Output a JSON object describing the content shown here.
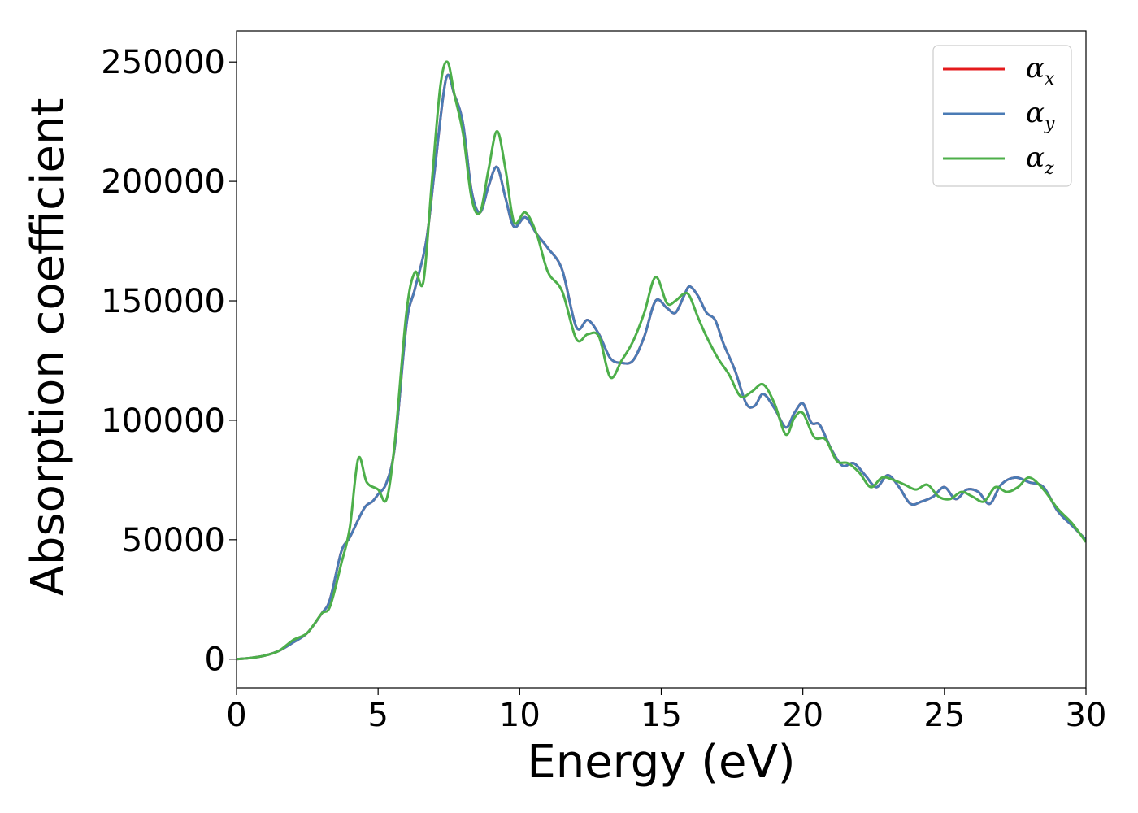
{
  "chart_data": {
    "type": "line",
    "xlabel": "Energy (eV)",
    "ylabel": "Absorption coefficient",
    "xlim": [
      0,
      30
    ],
    "ylim": [
      -12000,
      263000
    ],
    "xticks": [
      0,
      5,
      10,
      15,
      20,
      25,
      30
    ],
    "yticks": [
      0,
      50000,
      100000,
      150000,
      200000,
      250000
    ],
    "grid": false,
    "legend_position": "top-right",
    "series": [
      {
        "name": "α_x",
        "legend_symbol": "α",
        "legend_subscript": "x",
        "color": "#e41a1c",
        "x": [
          0,
          0.5,
          1,
          1.5,
          2,
          2.5,
          3,
          3.3,
          3.7,
          4,
          4.5,
          4.8,
          5.0,
          5.3,
          5.6,
          6.0,
          6.3,
          6.7,
          7.0,
          7.4,
          7.7,
          8.0,
          8.3,
          8.6,
          8.9,
          9.2,
          9.5,
          9.8,
          10.2,
          10.6,
          11.0,
          11.5,
          12.0,
          12.4,
          12.8,
          13.2,
          13.6,
          14.0,
          14.4,
          14.8,
          15.2,
          15.5,
          15.8,
          16.0,
          16.3,
          16.6,
          16.9,
          17.2,
          17.6,
          18.0,
          18.3,
          18.6,
          19.0,
          19.4,
          19.7,
          20.0,
          20.3,
          20.6,
          21.0,
          21.4,
          21.8,
          22.2,
          22.6,
          23.0,
          23.4,
          23.8,
          24.2,
          24.6,
          25.0,
          25.4,
          25.8,
          26.2,
          26.6,
          27.0,
          27.5,
          28.0,
          28.5,
          29.0,
          29.5,
          30.0
        ],
        "y": [
          0,
          500,
          1500,
          3500,
          7000,
          11000,
          19000,
          25000,
          45000,
          51000,
          63000,
          66000,
          69000,
          74000,
          90000,
          140000,
          155000,
          175000,
          205000,
          243000,
          236000,
          224000,
          196000,
          187000,
          198000,
          206000,
          193000,
          181000,
          185000,
          178000,
          172000,
          163000,
          139000,
          142000,
          136000,
          126000,
          124000,
          125000,
          135000,
          150000,
          147000,
          145000,
          152000,
          156000,
          152000,
          145000,
          142000,
          132000,
          121000,
          107000,
          106000,
          111000,
          105000,
          97000,
          103000,
          107000,
          99000,
          98000,
          88000,
          81000,
          82000,
          77000,
          72000,
          77000,
          72000,
          65000,
          66000,
          68000,
          72000,
          67000,
          71000,
          70000,
          65000,
          73000,
          76000,
          74000,
          72000,
          62000,
          56000,
          50000
        ]
      },
      {
        "name": "α_y",
        "legend_symbol": "α",
        "legend_subscript": "y",
        "color": "#4a7bb5",
        "x": [
          0,
          0.5,
          1,
          1.5,
          2,
          2.5,
          3,
          3.3,
          3.7,
          4,
          4.5,
          4.8,
          5.0,
          5.3,
          5.6,
          6.0,
          6.3,
          6.7,
          7.0,
          7.4,
          7.7,
          8.0,
          8.3,
          8.6,
          8.9,
          9.2,
          9.5,
          9.8,
          10.2,
          10.6,
          11.0,
          11.5,
          12.0,
          12.4,
          12.8,
          13.2,
          13.6,
          14.0,
          14.4,
          14.8,
          15.2,
          15.5,
          15.8,
          16.0,
          16.3,
          16.6,
          16.9,
          17.2,
          17.6,
          18.0,
          18.3,
          18.6,
          19.0,
          19.4,
          19.7,
          20.0,
          20.3,
          20.6,
          21.0,
          21.4,
          21.8,
          22.2,
          22.6,
          23.0,
          23.4,
          23.8,
          24.2,
          24.6,
          25.0,
          25.4,
          25.8,
          26.2,
          26.6,
          27.0,
          27.5,
          28.0,
          28.5,
          29.0,
          29.5,
          30.0
        ],
        "y": [
          0,
          500,
          1500,
          3500,
          7000,
          11000,
          19000,
          25000,
          45000,
          51000,
          63000,
          66000,
          69000,
          74000,
          90000,
          140000,
          155000,
          175000,
          205000,
          243000,
          236000,
          224000,
          196000,
          187000,
          198000,
          206000,
          193000,
          181000,
          185000,
          178000,
          172000,
          163000,
          139000,
          142000,
          136000,
          126000,
          124000,
          125000,
          135000,
          150000,
          147000,
          145000,
          152000,
          156000,
          152000,
          145000,
          142000,
          132000,
          121000,
          107000,
          106000,
          111000,
          105000,
          97000,
          103000,
          107000,
          99000,
          98000,
          88000,
          81000,
          82000,
          77000,
          72000,
          77000,
          72000,
          65000,
          66000,
          68000,
          72000,
          67000,
          71000,
          70000,
          65000,
          73000,
          76000,
          74000,
          72000,
          62000,
          56000,
          50000
        ]
      },
      {
        "name": "α_z",
        "legend_symbol": "α",
        "legend_subscript": "z",
        "color": "#4daf4a",
        "x": [
          0,
          0.5,
          1,
          1.5,
          2,
          2.5,
          3,
          3.3,
          3.7,
          4.0,
          4.3,
          4.6,
          5.0,
          5.3,
          5.6,
          6.0,
          6.3,
          6.6,
          6.9,
          7.2,
          7.45,
          7.7,
          8.0,
          8.3,
          8.6,
          8.9,
          9.2,
          9.5,
          9.8,
          10.2,
          10.6,
          11.0,
          11.5,
          12.0,
          12.4,
          12.8,
          13.2,
          13.6,
          14.0,
          14.4,
          14.8,
          15.2,
          15.5,
          15.8,
          16.0,
          16.3,
          16.6,
          17.0,
          17.4,
          17.8,
          18.2,
          18.6,
          19.0,
          19.4,
          19.7,
          20.0,
          20.4,
          20.8,
          21.2,
          21.6,
          22.0,
          22.4,
          22.8,
          23.2,
          23.6,
          24.0,
          24.4,
          24.8,
          25.2,
          25.6,
          26.0,
          26.4,
          26.8,
          27.2,
          27.6,
          28.0,
          28.5,
          29.0,
          29.5,
          30.0
        ],
        "y": [
          0,
          500,
          1500,
          3500,
          8000,
          11000,
          19000,
          22000,
          40000,
          55000,
          84000,
          74000,
          71000,
          67000,
          92000,
          145000,
          162000,
          158000,
          200000,
          240000,
          250000,
          236000,
          220000,
          193000,
          187000,
          205000,
          221000,
          205000,
          183000,
          187000,
          178000,
          162000,
          154000,
          134000,
          136000,
          135000,
          118000,
          125000,
          133000,
          145000,
          160000,
          149000,
          150000,
          153000,
          152000,
          143000,
          135000,
          126000,
          119000,
          110000,
          112000,
          115000,
          107000,
          94000,
          101000,
          103000,
          93000,
          92000,
          83000,
          82000,
          78000,
          72000,
          76000,
          75000,
          73000,
          71000,
          73000,
          68000,
          67000,
          70000,
          68000,
          66000,
          72000,
          70000,
          72000,
          76000,
          71000,
          63000,
          57000,
          49000
        ]
      }
    ]
  }
}
